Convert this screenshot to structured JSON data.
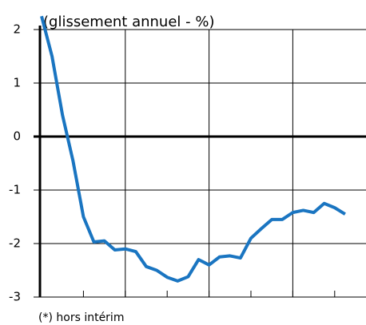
{
  "chart_data": {
    "type": "line",
    "title": "(glissement annuel - %)",
    "note": "(*) hors intérim",
    "categories": [
      null,
      null,
      null,
      null,
      null,
      null,
      null,
      null,
      null,
      null,
      null,
      null,
      null,
      null,
      null,
      null,
      null,
      null,
      null,
      null,
      null,
      null,
      null,
      null,
      null,
      null,
      null,
      null,
      null,
      null
    ],
    "series": [
      {
        "name": null,
        "color": "#1a75c1",
        "values": [
          2.25,
          1.5,
          0.4,
          -0.45,
          -1.5,
          -1.97,
          -1.95,
          -2.12,
          -2.1,
          -2.15,
          -2.43,
          -2.5,
          -2.63,
          -2.7,
          -2.62,
          -2.3,
          -2.4,
          -2.25,
          -2.23,
          -2.27,
          -1.9,
          -1.72,
          -1.55,
          -1.55,
          -1.42,
          -1.38,
          -1.42,
          -1.25,
          -1.33,
          -1.45
        ]
      }
    ],
    "ylim": [
      -3,
      2
    ],
    "yticks": [
      -3,
      -2,
      -1,
      0,
      1,
      2
    ],
    "grid": true
  }
}
